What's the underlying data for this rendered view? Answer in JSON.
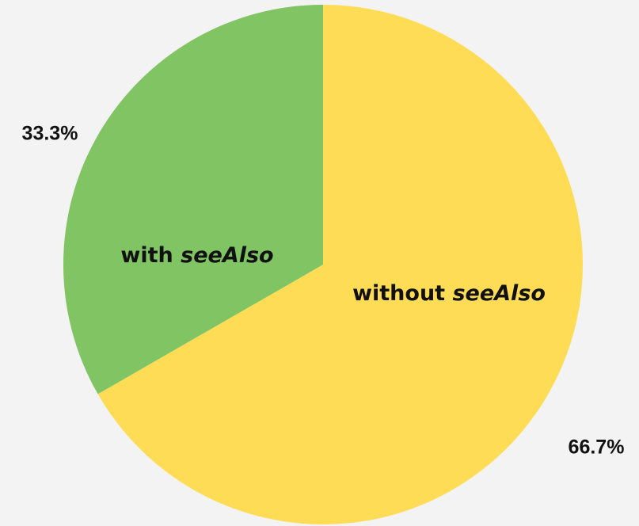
{
  "chart_data": {
    "type": "pie",
    "slices": [
      {
        "label_plain": "without ",
        "label_emphasis": "seeAlso",
        "value": 66.7,
        "value_label": "66.7%",
        "color": "#fedc56"
      },
      {
        "label_plain": "with ",
        "label_emphasis": "seeAlso",
        "value": 33.3,
        "value_label": "33.3%",
        "color": "#80c463"
      }
    ],
    "start_angle_deg": 0,
    "direction": "clockwise",
    "legend": "none"
  },
  "colors": {
    "background": "#f3f3f3",
    "text": "#111111"
  }
}
